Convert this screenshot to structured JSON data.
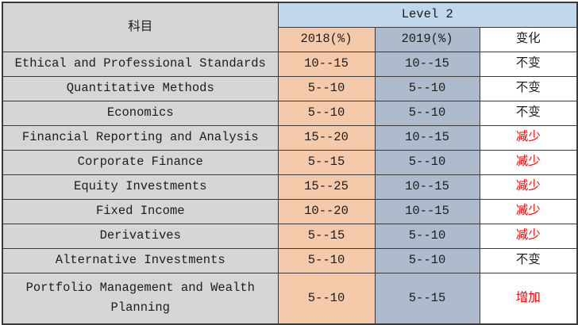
{
  "chart_data": {
    "type": "table",
    "group_header": "Level 2",
    "columns": {
      "subject": "科目",
      "y2018": "2018(%)",
      "y2019": "2019(%)",
      "change": "变化"
    },
    "rows": [
      {
        "subject": "Ethical and Professional Standards",
        "y2018": "10--15",
        "y2019": "10--15",
        "change": "不变",
        "change_type": "same"
      },
      {
        "subject": "Quantitative Methods",
        "y2018": "5--10",
        "y2019": "5--10",
        "change": "不变",
        "change_type": "same"
      },
      {
        "subject": "Economics",
        "y2018": "5--10",
        "y2019": "5--10",
        "change": "不变",
        "change_type": "same"
      },
      {
        "subject": "Financial Reporting and Analysis",
        "y2018": "15--20",
        "y2019": "10--15",
        "change": "减少",
        "change_type": "decrease"
      },
      {
        "subject": "Corporate Finance",
        "y2018": "5--15",
        "y2019": "5--10",
        "change": "减少",
        "change_type": "decrease"
      },
      {
        "subject": "Equity Investments",
        "y2018": "15--25",
        "y2019": "10--15",
        "change": "减少",
        "change_type": "decrease"
      },
      {
        "subject": "Fixed Income",
        "y2018": "10--20",
        "y2019": "10--15",
        "change": "减少",
        "change_type": "decrease"
      },
      {
        "subject": "Derivatives",
        "y2018": "5--15",
        "y2019": "5--10",
        "change": "减少",
        "change_type": "decrease"
      },
      {
        "subject": "Alternative Investments",
        "y2018": "5--10",
        "y2019": "5--10",
        "change": "不变",
        "change_type": "same"
      },
      {
        "subject": "Portfolio Management and Wealth Planning",
        "y2018": "5--10",
        "y2019": "5--15",
        "change": "增加",
        "change_type": "increase"
      }
    ],
    "colors": {
      "subject_column_bg": "#d6d6d6",
      "level2_header_bg": "#c1d7eb",
      "col_2018_bg": "#f5caab",
      "col_2019_bg": "#aebbcc",
      "change_column_bg": "#ffffff",
      "change_highlight_text": "#ff0000",
      "border": "#3a3a3a",
      "text": "#1c1c1c"
    }
  }
}
